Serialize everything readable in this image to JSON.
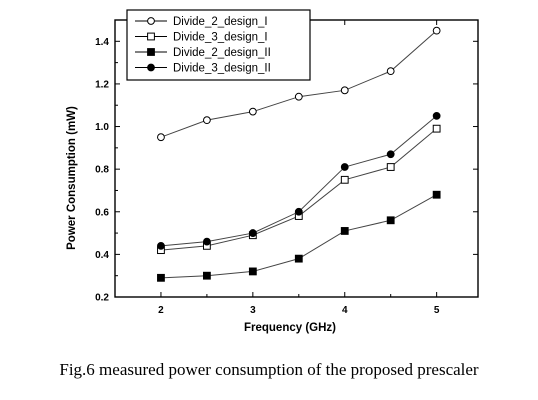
{
  "chart_data": {
    "type": "line",
    "xlabel": "Frequency (GHz)",
    "ylabel": "Power Consumption (mW)",
    "xlim": [
      1.5,
      5.45
    ],
    "ylim": [
      0.2,
      1.5
    ],
    "xticks": [
      2,
      3,
      4,
      5
    ],
    "yticks": [
      0.2,
      0.4,
      0.6,
      0.8,
      1.0,
      1.2,
      1.4
    ],
    "ytick_labels": [
      "0.2",
      "0.4",
      "0.6",
      "0.8",
      "1.0",
      "1.2",
      "1.4"
    ],
    "legend_position": "top-left",
    "x": [
      2,
      2.5,
      3,
      3.5,
      4,
      4.5,
      5
    ],
    "series": [
      {
        "name": "Divide_2_design_I",
        "marker": "open-circle",
        "values": [
          0.95,
          1.03,
          1.07,
          1.14,
          1.17,
          1.26,
          1.45
        ]
      },
      {
        "name": "Divide_3_design_I",
        "marker": "open-square",
        "values": [
          0.42,
          0.44,
          0.49,
          0.58,
          0.75,
          0.81,
          0.99
        ]
      },
      {
        "name": "Divide_2_design_II",
        "marker": "filled-square",
        "values": [
          0.29,
          0.3,
          0.32,
          0.38,
          0.51,
          0.56,
          0.68
        ]
      },
      {
        "name": "Divide_3_design_II",
        "marker": "filled-circle",
        "values": [
          0.44,
          0.46,
          0.5,
          0.6,
          0.81,
          0.87,
          1.05
        ]
      }
    ]
  },
  "caption": "Fig.6 measured power consumption of the proposed prescaler"
}
